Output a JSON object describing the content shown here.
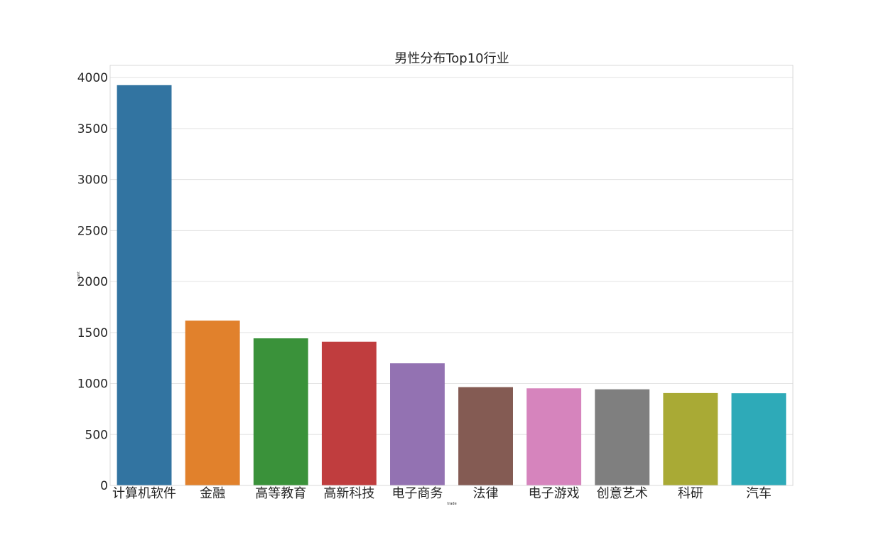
{
  "chart_data": {
    "type": "bar",
    "title": "男性分布Top10行业",
    "xlabel": "trade",
    "ylabel": "count",
    "categories": [
      "计算机软件",
      "金融",
      "高等教育",
      "高新科技",
      "电子商务",
      "法律",
      "电子游戏",
      "创意艺术",
      "科研",
      "汽车"
    ],
    "values": [
      3926,
      1617,
      1443,
      1410,
      1198,
      964,
      953,
      943,
      907,
      905
    ],
    "colors": [
      "#3274a1",
      "#e1812c",
      "#3a923a",
      "#c03d3e",
      "#9372b2",
      "#845b53",
      "#d684bd",
      "#7f7f7f",
      "#a9aa35",
      "#2eaab8"
    ],
    "ylim": [
      0,
      4120
    ],
    "yticks": [
      0,
      500,
      1000,
      1500,
      2000,
      2500,
      3000,
      3500,
      4000
    ],
    "grid": true,
    "legend": "none"
  }
}
